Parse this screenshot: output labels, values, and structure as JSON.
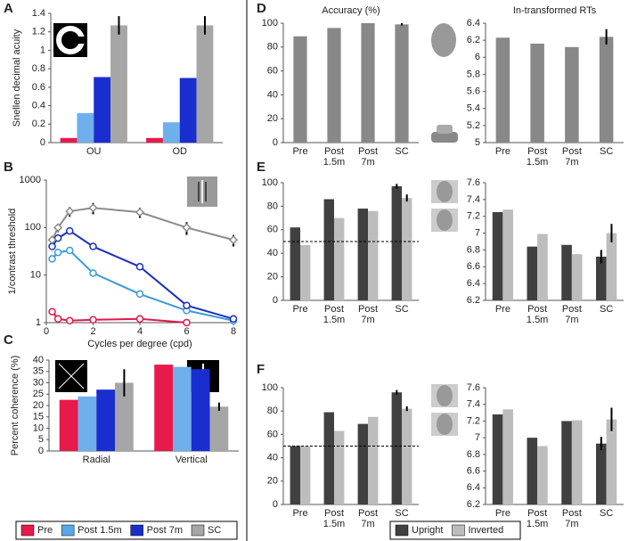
{
  "chart_data": [
    {
      "type": "bar",
      "panel": "A",
      "ylabel": "Snellen decimal acuity",
      "categories": [
        "OU",
        "OD"
      ],
      "series": [
        {
          "color": "#e8194b",
          "values": [
            0.05,
            0.05
          ]
        },
        {
          "color": "#6fb0ec",
          "values": [
            0.32,
            0.22
          ]
        },
        {
          "color": "#1a2dcf",
          "values": [
            0.71,
            0.7
          ]
        },
        {
          "color": "#a6a6a6",
          "values": [
            1.27,
            1.27
          ],
          "errors": [
            0.1,
            0.1
          ]
        }
      ],
      "ylim": [
        0,
        1.4
      ],
      "yticks": [
        0,
        0.2,
        0.4,
        0.6,
        0.8,
        1,
        1.2,
        1.4
      ]
    },
    {
      "type": "line",
      "panel": "B",
      "ylabel": "1/contrast threshold",
      "xlabel": "Cycles per degree (cpd)",
      "log_y": true,
      "series": [
        {
          "color": "#e0194a",
          "marker": "circle",
          "x": [
            0.25,
            0.5,
            1,
            2,
            4,
            6
          ],
          "values": [
            1.7,
            1.2,
            1.1,
            1.15,
            1.2,
            1.0
          ]
        },
        {
          "color": "#3a9ad8",
          "marker": "circle",
          "x": [
            0.25,
            0.5,
            1,
            2,
            4,
            6,
            8
          ],
          "values": [
            22,
            30,
            33,
            11,
            4,
            1.8,
            1.1
          ]
        },
        {
          "color": "#1a2fc0",
          "marker": "circle",
          "x": [
            0.25,
            0.5,
            1,
            2,
            4,
            6,
            8
          ],
          "values": [
            40,
            60,
            85,
            40,
            15,
            2.3,
            1.2
          ]
        },
        {
          "color": "#8c8c8c",
          "marker": "diamond",
          "x": [
            0.25,
            0.5,
            1,
            2,
            4,
            6,
            8
          ],
          "values": [
            55,
            100,
            220,
            260,
            210,
            100,
            55
          ],
          "errors": [
            10,
            20,
            50,
            70,
            50,
            30,
            15
          ]
        }
      ],
      "xlim": [
        0,
        8
      ],
      "xticks": [
        0,
        2,
        4,
        6,
        8
      ],
      "ylim": [
        1,
        1000
      ],
      "yticks": [
        1,
        10,
        100,
        1000
      ]
    },
    {
      "type": "bar",
      "panel": "C",
      "ylabel": "Percent coherence (%)",
      "categories": [
        "Radial",
        "Vertical"
      ],
      "series": [
        {
          "color": "#e8194b",
          "values": [
            22.5,
            38
          ]
        },
        {
          "color": "#6fb0ec",
          "values": [
            24,
            37
          ]
        },
        {
          "color": "#1a2dcf",
          "values": [
            27,
            36
          ]
        },
        {
          "color": "#a6a6a6",
          "values": [
            30,
            19.5
          ],
          "errors": [
            6,
            1.8
          ]
        }
      ],
      "ylim": [
        0,
        40
      ],
      "yticks": [
        0,
        5,
        10,
        15,
        20,
        25,
        30,
        35,
        40
      ]
    },
    {
      "type": "bar",
      "panel": "D",
      "title": "Accuracy (%)",
      "categories": [
        "Pre",
        "Post 1.5m",
        "Post 7m",
        "SC"
      ],
      "series": [
        {
          "color": "#888888",
          "values": [
            89,
            96,
            100,
            99
          ],
          "errors": [
            null,
            null,
            null,
            1
          ]
        }
      ],
      "ylim": [
        0,
        100
      ],
      "yticks": [
        0,
        20,
        40,
        60,
        80,
        100
      ]
    },
    {
      "type": "bar",
      "title": "In-transformed RTs",
      "categories": [
        "Pre",
        "Post 1.5m",
        "Post 7m",
        "SC"
      ],
      "series": [
        {
          "color": "#888888",
          "values": [
            6.23,
            6.16,
            6.12,
            6.24
          ],
          "errors": [
            null,
            null,
            null,
            0.09
          ]
        }
      ],
      "ylim": [
        5,
        6.4
      ],
      "yticks": [
        5,
        5.2,
        5.4,
        5.6,
        5.8,
        6,
        6.2,
        6.4
      ]
    },
    {
      "type": "bar",
      "panel": "E",
      "categories": [
        "Pre",
        "Post 1.5m",
        "Post 7m",
        "SC"
      ],
      "reference_line": 50,
      "series": [
        {
          "color": "#404040",
          "values": [
            62,
            86,
            78,
            97
          ],
          "errors": [
            null,
            null,
            null,
            2
          ]
        },
        {
          "color": "#bdbdbd",
          "values": [
            47,
            70,
            76,
            87
          ],
          "errors": [
            null,
            null,
            null,
            3
          ]
        }
      ],
      "ylim": [
        0,
        100
      ],
      "yticks": [
        0,
        20,
        40,
        60,
        80,
        100
      ]
    },
    {
      "type": "bar",
      "categories": [
        "Pre",
        "Post 1.5m",
        "Post 7m",
        "SC"
      ],
      "series": [
        {
          "color": "#404040",
          "values": [
            7.25,
            6.84,
            6.86,
            6.72
          ],
          "errors": [
            null,
            null,
            null,
            0.08
          ]
        },
        {
          "color": "#bdbdbd",
          "values": [
            7.28,
            6.99,
            6.75,
            7.0
          ],
          "errors": [
            null,
            null,
            null,
            0.11
          ]
        }
      ],
      "ylim": [
        6.2,
        7.6
      ],
      "yticks": [
        6.2,
        6.4,
        6.6,
        6.8,
        7,
        7.2,
        7.4,
        7.6
      ]
    },
    {
      "type": "bar",
      "panel": "F",
      "categories": [
        "Pre",
        "Post 1.5m",
        "Post 7m",
        "SC"
      ],
      "reference_line": 50,
      "series": [
        {
          "color": "#404040",
          "values": [
            50,
            79,
            69,
            96
          ],
          "errors": [
            null,
            null,
            null,
            2
          ]
        },
        {
          "color": "#bdbdbd",
          "values": [
            50,
            63,
            75,
            82
          ],
          "errors": [
            null,
            null,
            null,
            2
          ]
        }
      ],
      "ylim": [
        0,
        100
      ],
      "yticks": [
        0,
        20,
        40,
        60,
        80,
        100
      ]
    },
    {
      "type": "bar",
      "categories": [
        "Pre",
        "Post 1.5m",
        "Post 7m",
        "SC"
      ],
      "series": [
        {
          "color": "#404040",
          "values": [
            7.28,
            7.0,
            7.2,
            6.93
          ],
          "errors": [
            null,
            null,
            null,
            0.08
          ]
        },
        {
          "color": "#bdbdbd",
          "values": [
            7.34,
            6.9,
            7.21,
            7.22
          ],
          "errors": [
            null,
            null,
            null,
            0.14
          ]
        }
      ],
      "ylim": [
        6.2,
        7.6
      ],
      "yticks": [
        6.2,
        6.4,
        6.6,
        6.8,
        7,
        7.2,
        7.4,
        7.6
      ]
    }
  ],
  "legends": [
    {
      "entries": [
        {
          "name": "Pre",
          "color": "#e8194b"
        },
        {
          "name": "Post 1.5m",
          "color": "#5aa8e8"
        },
        {
          "name": "Post 7m",
          "color": "#1a2dcf"
        },
        {
          "name": "SC",
          "color": "#a6a6a6"
        }
      ]
    },
    {
      "entries": [
        {
          "name": "Upright",
          "color": "#404040"
        },
        {
          "name": "Inverted",
          "color": "#bdbdbd"
        }
      ]
    }
  ]
}
